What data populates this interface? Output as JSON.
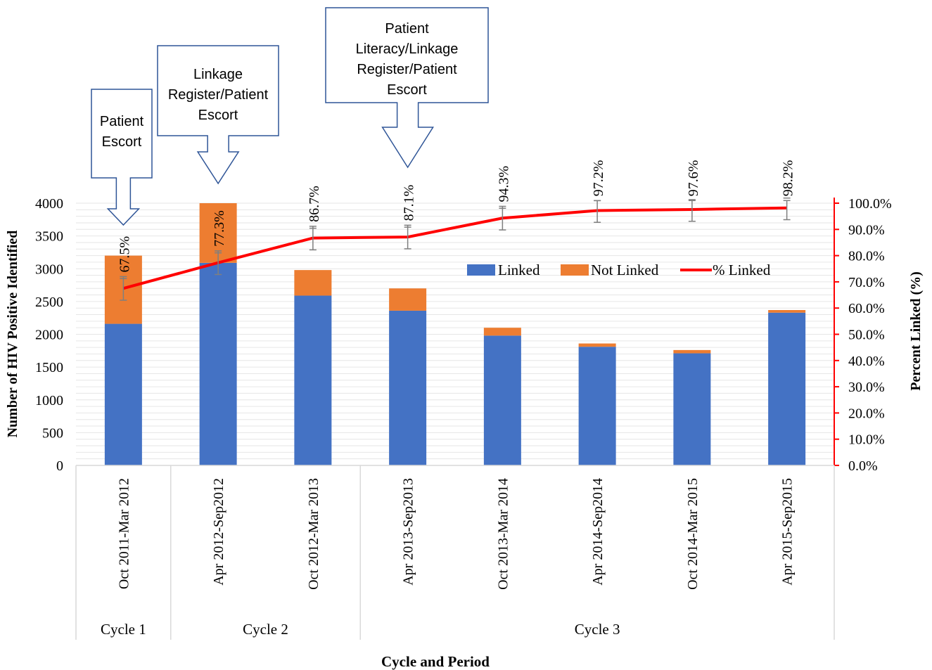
{
  "chart_data": {
    "type": "bar",
    "stacked": true,
    "categories": [
      "Oct 2011-Mar 2012",
      "Apr 2012-Sep2012",
      "Oct 2012-Mar 2013",
      "Apr 2013-Sep2013",
      "Oct 2013-Mar 2014",
      "Apr 2014-Sep2014",
      "Oct 2014-Mar 2015",
      "Apr 2015-Sep2015"
    ],
    "cycles": [
      {
        "label": "Cycle 1",
        "span": 1
      },
      {
        "label": "Cycle 2",
        "span": 2
      },
      {
        "label": "Cycle 3",
        "span": 5
      }
    ],
    "series": [
      {
        "name": "Linked",
        "color": "#4472C4",
        "values": [
          2160,
          3090,
          2590,
          2360,
          1980,
          1810,
          1710,
          2330
        ]
      },
      {
        "name": "Not Linked",
        "color": "#ED7D31",
        "values": [
          1040,
          910,
          390,
          340,
          120,
          50,
          50,
          40
        ]
      }
    ],
    "line_series": {
      "name": "% Linked",
      "color": "#FF0000",
      "values": [
        67.5,
        77.3,
        86.7,
        87.1,
        94.3,
        97.2,
        97.6,
        98.2
      ],
      "labels": [
        "67.5%",
        "77.3%",
        "86.7%",
        "87.1%",
        "94.3%",
        "97.2%",
        "97.6%",
        "98.2%"
      ]
    },
    "xlabel": "Cycle and Period",
    "ylabel": "Number of HIV Positive Identified",
    "y2label": "Percent Linked (%)",
    "ylim": [
      0,
      4000
    ],
    "y_ticks": [
      "0",
      "500",
      "1000",
      "1500",
      "2000",
      "2500",
      "3000",
      "3500",
      "4000"
    ],
    "y2lim": [
      0,
      100
    ],
    "y2_ticks": [
      "0.0%",
      "10.0%",
      "20.0%",
      "30.0%",
      "40.0%",
      "50.0%",
      "60.0%",
      "70.0%",
      "80.0%",
      "90.0%",
      "100.0%"
    ],
    "legend_position": "inside-right",
    "grid": true,
    "annotations": [
      {
        "text_lines": [
          "Patient",
          "Escort"
        ],
        "category_index": 0
      },
      {
        "text_lines": [
          "Linkage",
          "Register/Patient",
          "Escort"
        ],
        "category_index": 1
      },
      {
        "text_lines": [
          "Patient",
          "Literacy/Linkage",
          "Register/Patient",
          "Escort"
        ],
        "category_index": 3
      }
    ]
  },
  "colors": {
    "axis": "#D9D9D9",
    "grid": "#E6E6E6",
    "right_axis": "#FF0000",
    "callout_border": "#2F5597",
    "error_bar": "#7F7F7F"
  }
}
